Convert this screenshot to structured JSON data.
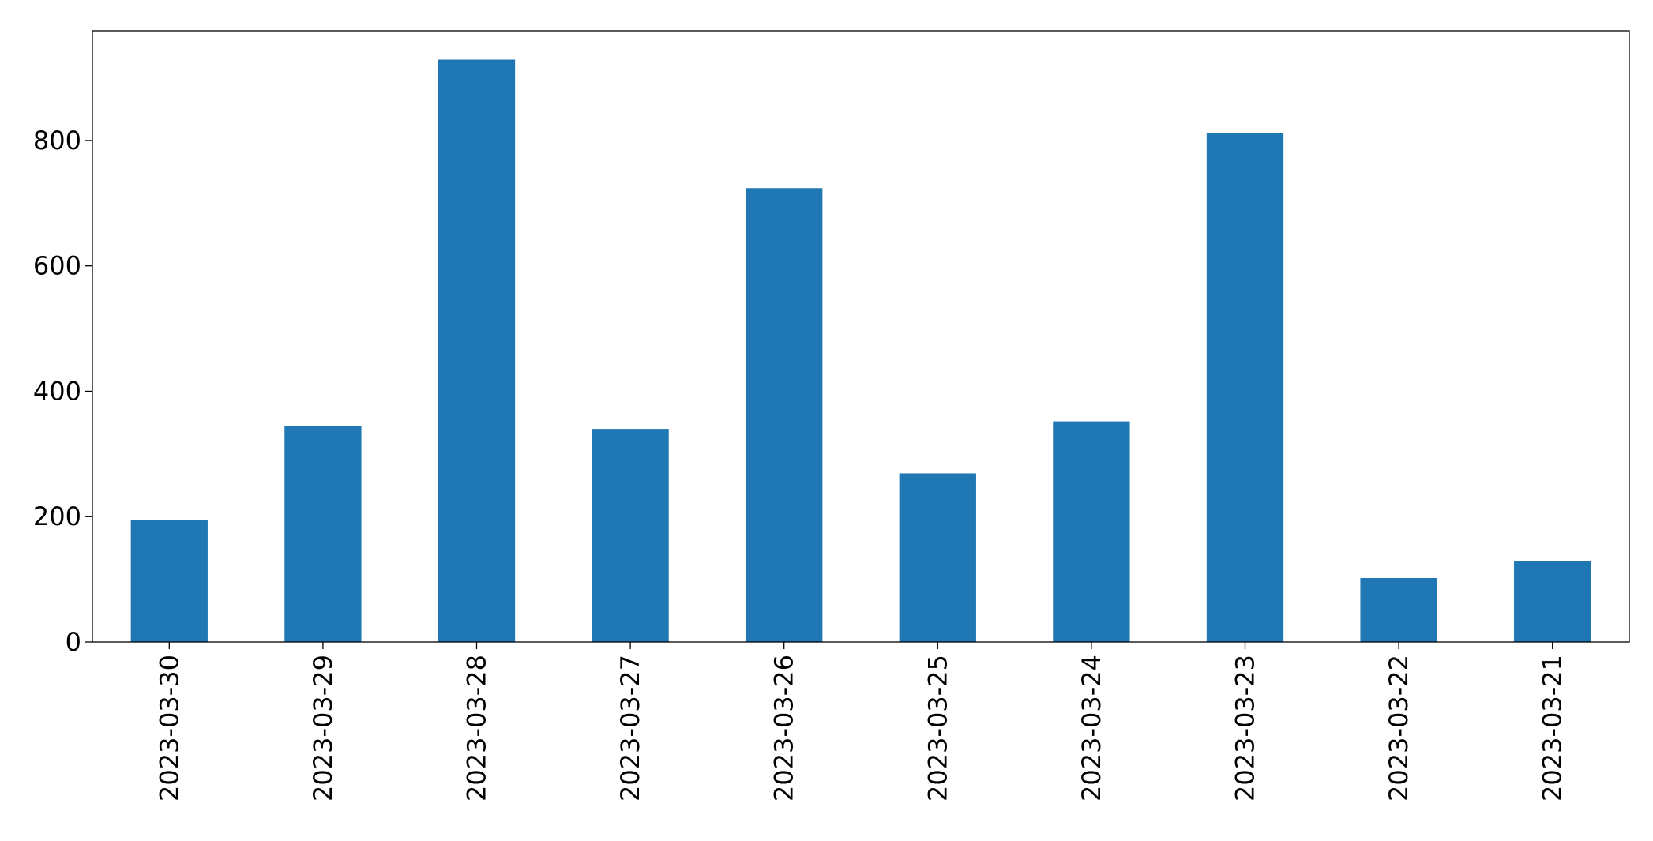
{
  "chart_data": {
    "type": "bar",
    "categories": [
      "2023-03-30",
      "2023-03-29",
      "2023-03-28",
      "2023-03-27",
      "2023-03-26",
      "2023-03-25",
      "2023-03-24",
      "2023-03-23",
      "2023-03-22",
      "2023-03-21"
    ],
    "values": [
      195,
      345,
      929,
      340,
      724,
      269,
      352,
      812,
      102,
      129
    ],
    "color": "#1f77b4",
    "ylim": [
      0,
      975
    ],
    "yticks": [
      0,
      200,
      400,
      600,
      800
    ],
    "grid": false
  }
}
